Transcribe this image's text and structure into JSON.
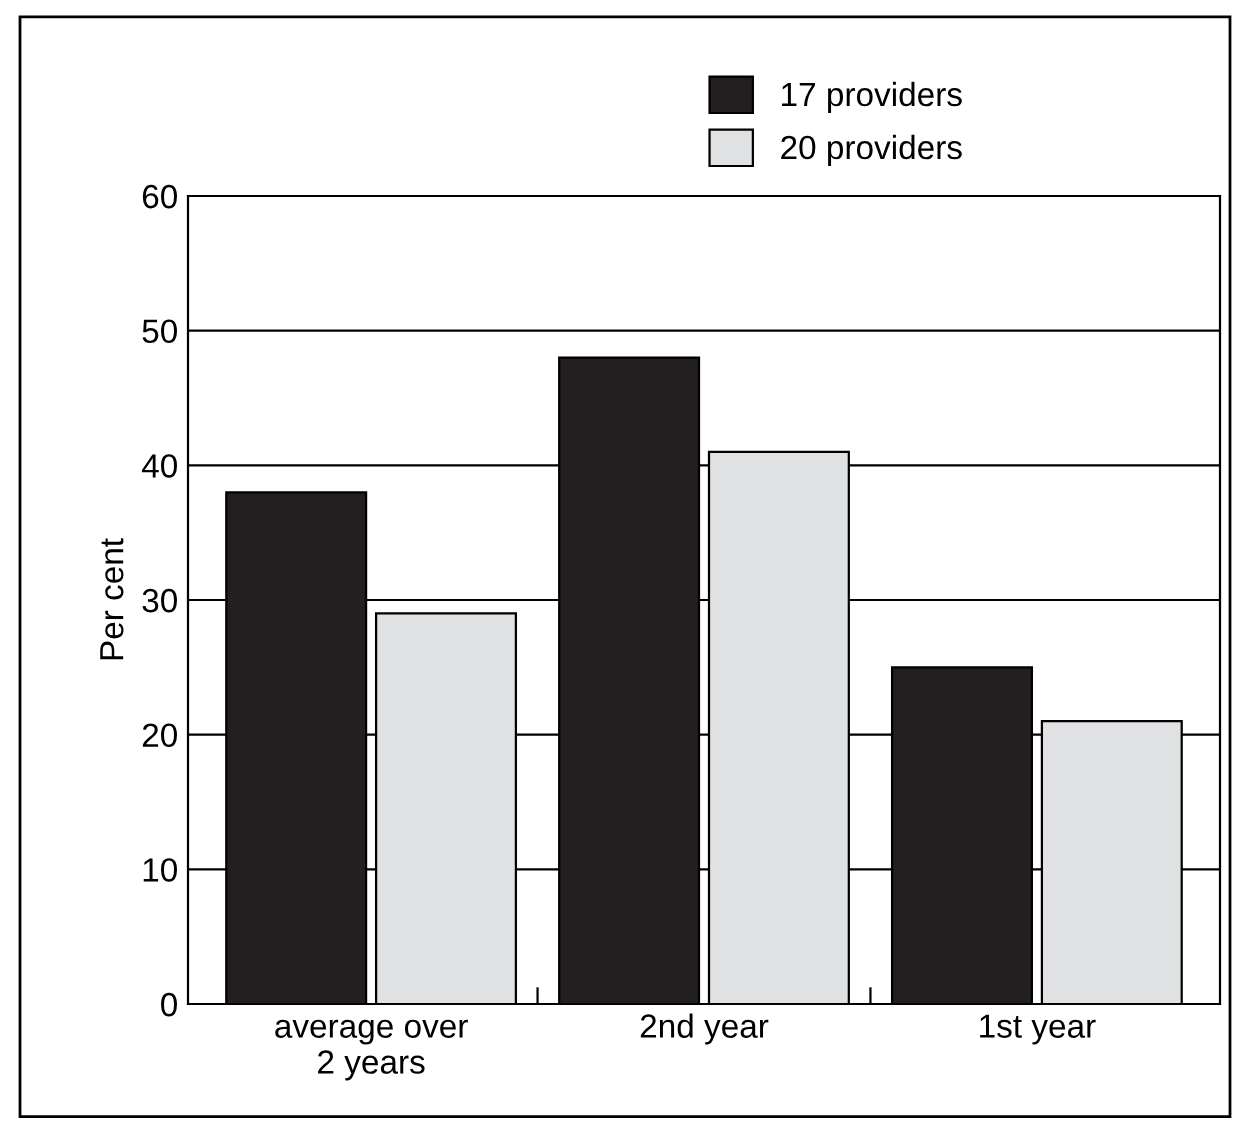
{
  "chart_data": {
    "type": "bar",
    "ylabel": "Per cent",
    "categories": [
      "average over\n2 years",
      "2nd year",
      "1st year"
    ],
    "series": [
      {
        "name": "17 providers",
        "color": "#231f20",
        "values": [
          38,
          48,
          25
        ]
      },
      {
        "name": "20 providers",
        "color": "#e0e1e3",
        "values": [
          29,
          41,
          21
        ]
      }
    ],
    "ylim": [
      0,
      60
    ],
    "yticks": [
      0,
      10,
      20,
      30,
      40,
      50,
      60
    ],
    "grid": "y",
    "legend": "top right"
  }
}
